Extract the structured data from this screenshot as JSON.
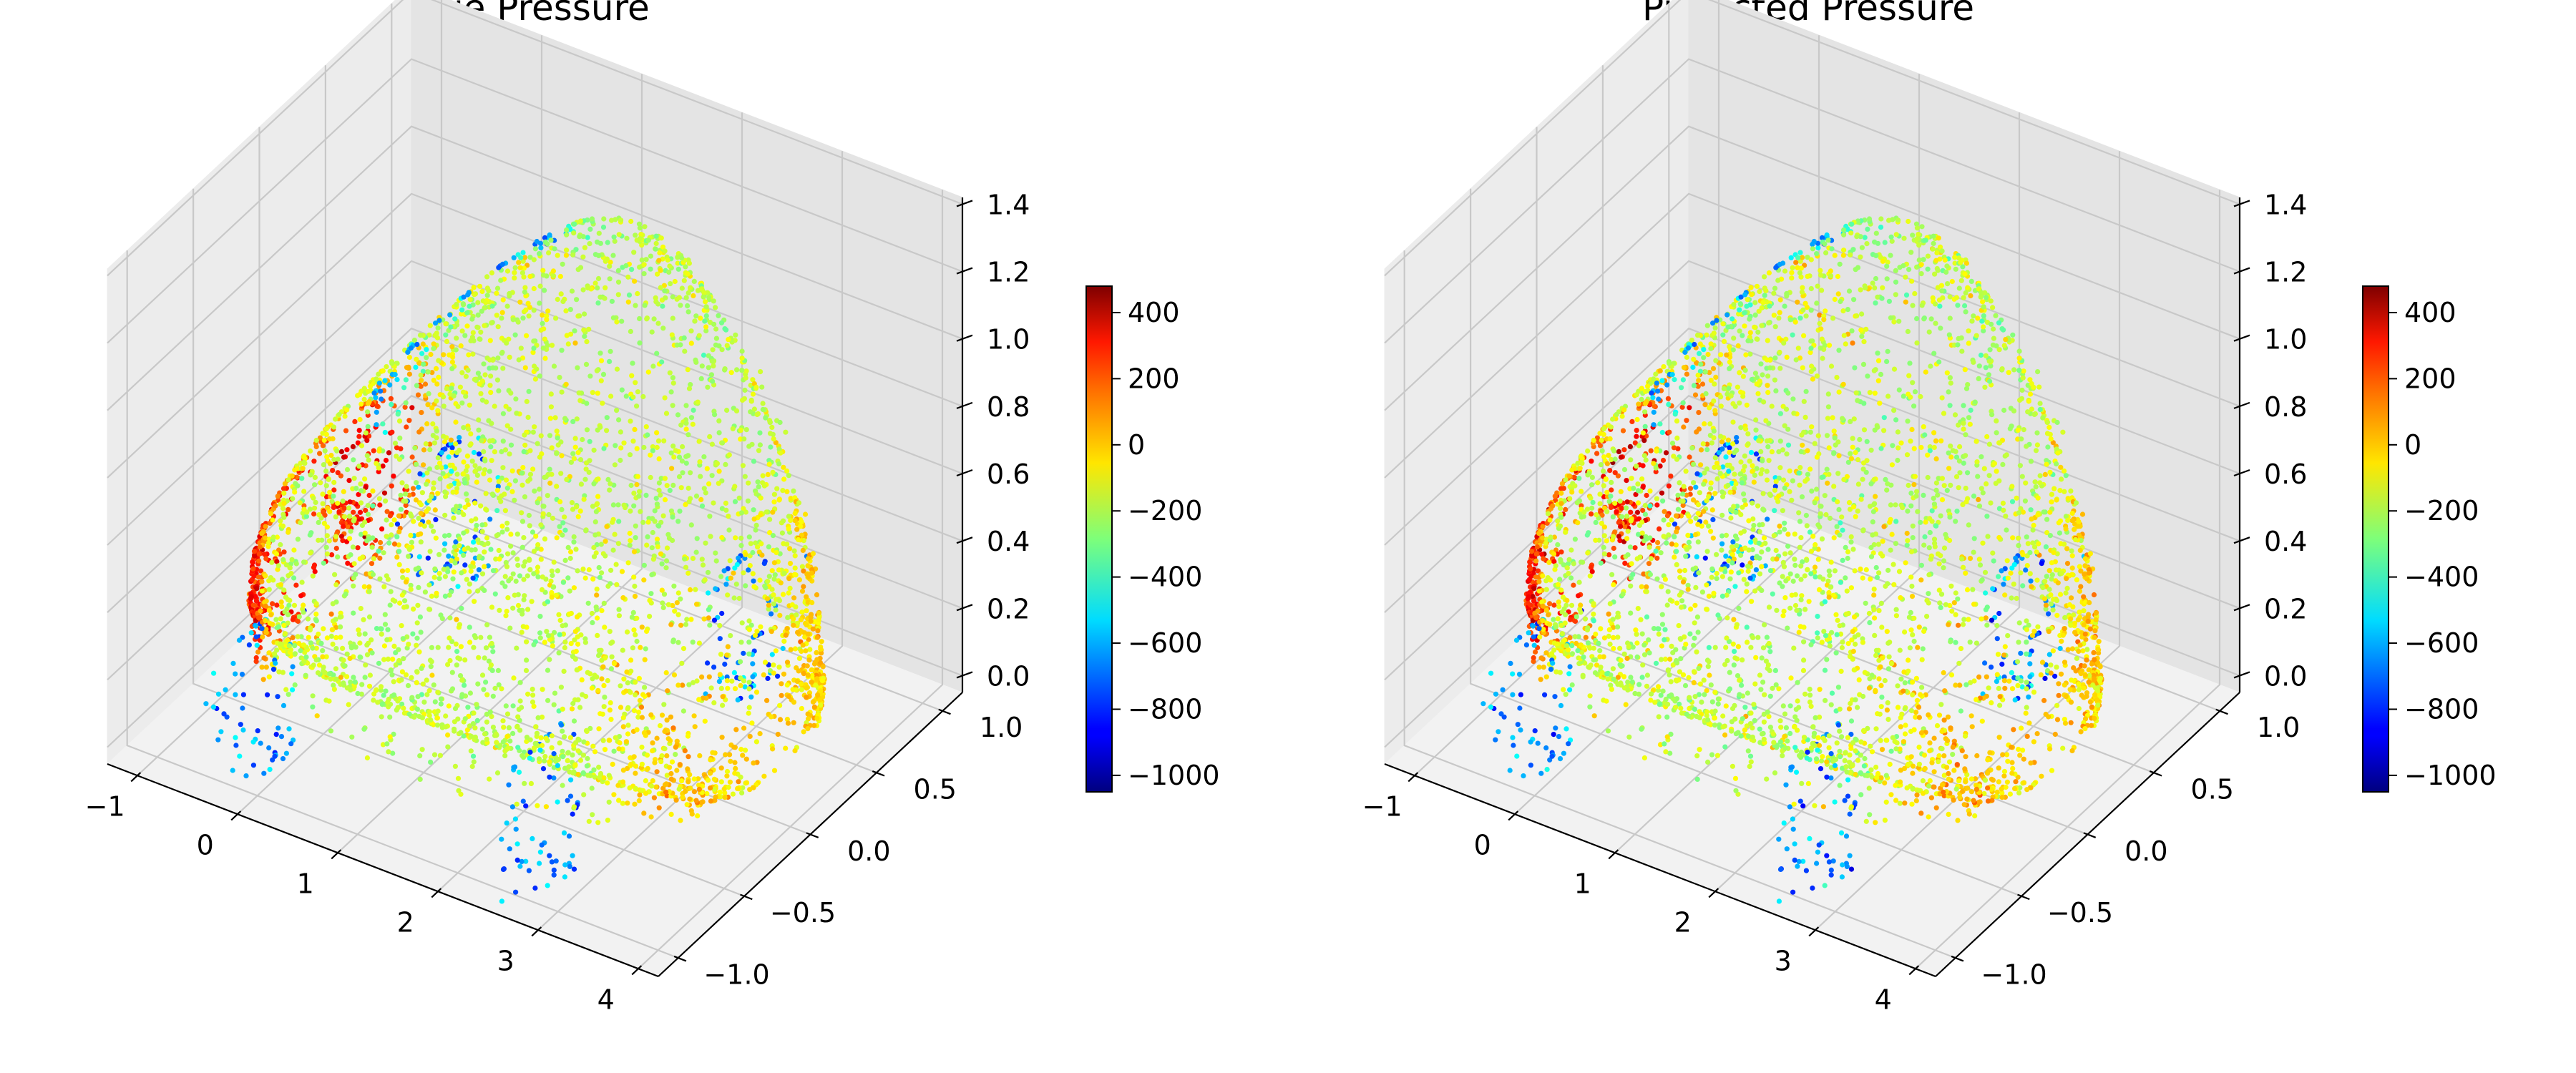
{
  "chart_data": [
    {
      "type": "scatter",
      "title": "True Pressure",
      "x_ticks": [
        "−1",
        "0",
        "1",
        "2",
        "3",
        "4"
      ],
      "y_ticks": [
        "−1.0",
        "−0.5",
        "0.0",
        "0.5",
        "1.0"
      ],
      "z_ticks": [
        "0.0",
        "0.2",
        "0.4",
        "0.6",
        "0.8",
        "1.0",
        "1.2",
        "1.4"
      ],
      "xlim": [
        -1.3,
        4.2
      ],
      "ylim": [
        -1.15,
        1.15
      ],
      "zlim": [
        -0.05,
        1.42
      ],
      "colorbar": {
        "colormap": "jet",
        "range": [
          -1050,
          480
        ],
        "ticks": [
          "400",
          "200",
          "0",
          "−200",
          "−400",
          "−600",
          "−800",
          "−1000"
        ],
        "tick_values": [
          400,
          200,
          0,
          -200,
          -400,
          -600,
          -800,
          -1000
        ]
      },
      "points": {
        "count": 4200,
        "seed": 11,
        "variant": "true"
      }
    },
    {
      "type": "scatter",
      "title": "Predicted Pressure",
      "x_ticks": [
        "−1",
        "0",
        "1",
        "2",
        "3",
        "4"
      ],
      "y_ticks": [
        "−1.0",
        "−0.5",
        "0.0",
        "0.5",
        "1.0"
      ],
      "z_ticks": [
        "0.0",
        "0.2",
        "0.4",
        "0.6",
        "0.8",
        "1.0",
        "1.2",
        "1.4"
      ],
      "xlim": [
        -1.3,
        4.2
      ],
      "ylim": [
        -1.15,
        1.15
      ],
      "zlim": [
        -0.05,
        1.42
      ],
      "colorbar": {
        "colormap": "jet",
        "range": [
          -1050,
          480
        ],
        "ticks": [
          "400",
          "200",
          "0",
          "−200",
          "−400",
          "−600",
          "−800",
          "−1000"
        ],
        "tick_values": [
          400,
          200,
          0,
          -200,
          -400,
          -600,
          -800,
          -1000
        ]
      },
      "points": {
        "count": 4200,
        "seed": 11,
        "variant": "predicted"
      }
    }
  ]
}
